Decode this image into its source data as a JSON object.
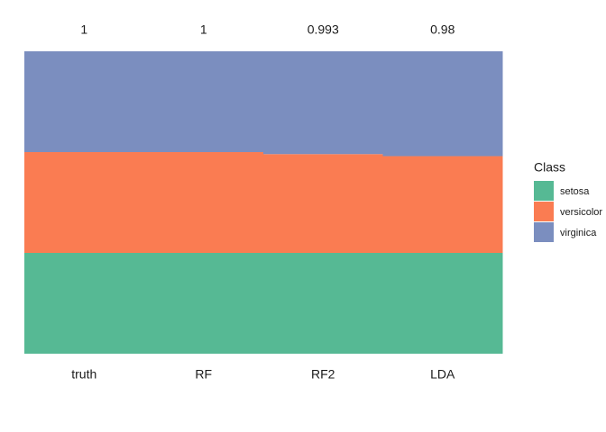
{
  "chart_data": {
    "type": "stacked-bar",
    "categories": [
      "truth",
      "RF",
      "RF2",
      "LDA"
    ],
    "accuracy": [
      1,
      1,
      0.993,
      0.98
    ],
    "ylim": [
      0,
      150
    ],
    "legend": {
      "title": "Class",
      "position": "right"
    },
    "series": [
      {
        "name": "setosa",
        "color": "#56b994",
        "values": [
          50,
          50,
          50,
          50
        ]
      },
      {
        "name": "versicolor",
        "color": "#fa7c52",
        "values": [
          50,
          50,
          49,
          48
        ]
      },
      {
        "name": "virginica",
        "color": "#7b8ebf",
        "values": [
          50,
          50,
          51,
          52
        ]
      }
    ]
  }
}
